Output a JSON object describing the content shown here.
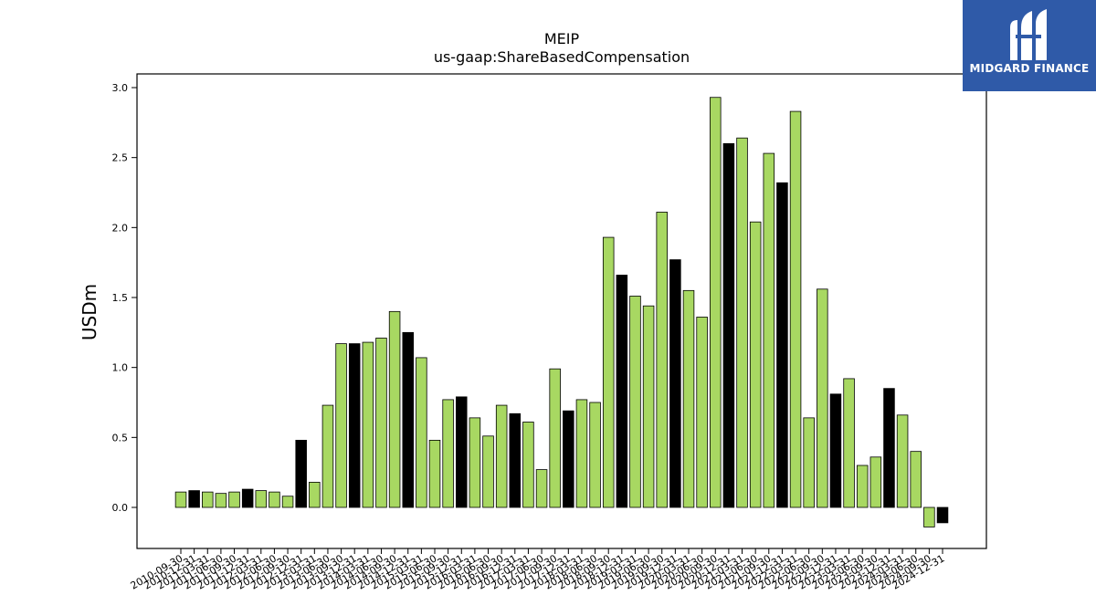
{
  "logo": {
    "text": "MIDGARD FINANCE",
    "background": "#2f5aa8"
  },
  "chart_data": {
    "type": "bar",
    "title": "MEIP",
    "subtitle": "us-gaap:ShareBasedCompensation",
    "ylabel": "USDm",
    "ylim": [
      -0.3,
      3.1
    ],
    "yticks": [
      "3.0",
      "2.5",
      "2.0",
      "1.5",
      "1.0",
      "0.5",
      "0.0"
    ],
    "grid": false,
    "colors": {
      "quarter": "#a8d862",
      "year_end": "#000000",
      "edge": "#000000"
    },
    "categories": [
      "2010-09-30",
      "2010-12-31",
      "2011-03-31",
      "2011-06-30",
      "2011-09-30",
      "2011-12-31",
      "2012-03-31",
      "2012-06-30",
      "2012-09-30",
      "2012-12-31",
      "2013-03-31",
      "2013-06-30",
      "2013-09-30",
      "2013-12-31",
      "2014-03-31",
      "2014-06-30",
      "2014-09-30",
      "2014-12-31",
      "2015-03-31",
      "2015-06-30",
      "2015-09-30",
      "2015-12-31",
      "2016-03-31",
      "2016-06-30",
      "2016-09-30",
      "2016-12-31",
      "2017-03-31",
      "2017-06-30",
      "2017-09-30",
      "2017-12-31",
      "2018-03-31",
      "2018-06-30",
      "2018-09-30",
      "2018-12-31",
      "2019-03-31",
      "2019-06-30",
      "2019-09-30",
      "2019-12-31",
      "2020-03-31",
      "2020-06-30",
      "2020-09-30",
      "2020-12-31",
      "2021-03-31",
      "2021-06-30",
      "2021-09-30",
      "2021-12-31",
      "2022-03-31",
      "2022-06-30",
      "2022-09-30",
      "2022-12-31",
      "2023-03-31",
      "2023-06-30",
      "2023-09-30",
      "2023-12-31",
      "2024-03-31",
      "2024-06-30",
      "2024-09-30",
      "2024-12-31"
    ],
    "values": [
      0.11,
      0.12,
      0.11,
      0.1,
      0.11,
      0.13,
      0.12,
      0.11,
      0.08,
      0.48,
      0.18,
      0.73,
      1.17,
      1.17,
      1.18,
      1.21,
      1.4,
      1.25,
      1.07,
      0.48,
      0.77,
      0.79,
      0.64,
      0.51,
      0.73,
      0.67,
      0.61,
      0.27,
      0.99,
      0.69,
      0.77,
      0.75,
      1.93,
      1.66,
      1.51,
      1.44,
      2.11,
      1.77,
      1.55,
      1.36,
      2.93,
      2.6,
      2.64,
      2.04,
      2.53,
      2.32,
      2.83,
      0.64,
      1.56,
      0.81,
      0.92,
      0.3,
      0.36,
      0.85,
      0.66,
      0.4,
      -0.14,
      -0.11
    ],
    "highlight": [
      false,
      true,
      false,
      false,
      false,
      true,
      false,
      false,
      false,
      true,
      false,
      false,
      false,
      true,
      false,
      false,
      false,
      true,
      false,
      false,
      false,
      true,
      false,
      false,
      false,
      true,
      false,
      false,
      false,
      true,
      false,
      false,
      false,
      true,
      false,
      false,
      false,
      true,
      false,
      false,
      false,
      true,
      false,
      false,
      false,
      true,
      false,
      false,
      false,
      true,
      false,
      false,
      false,
      true,
      false,
      false,
      false,
      true
    ]
  }
}
